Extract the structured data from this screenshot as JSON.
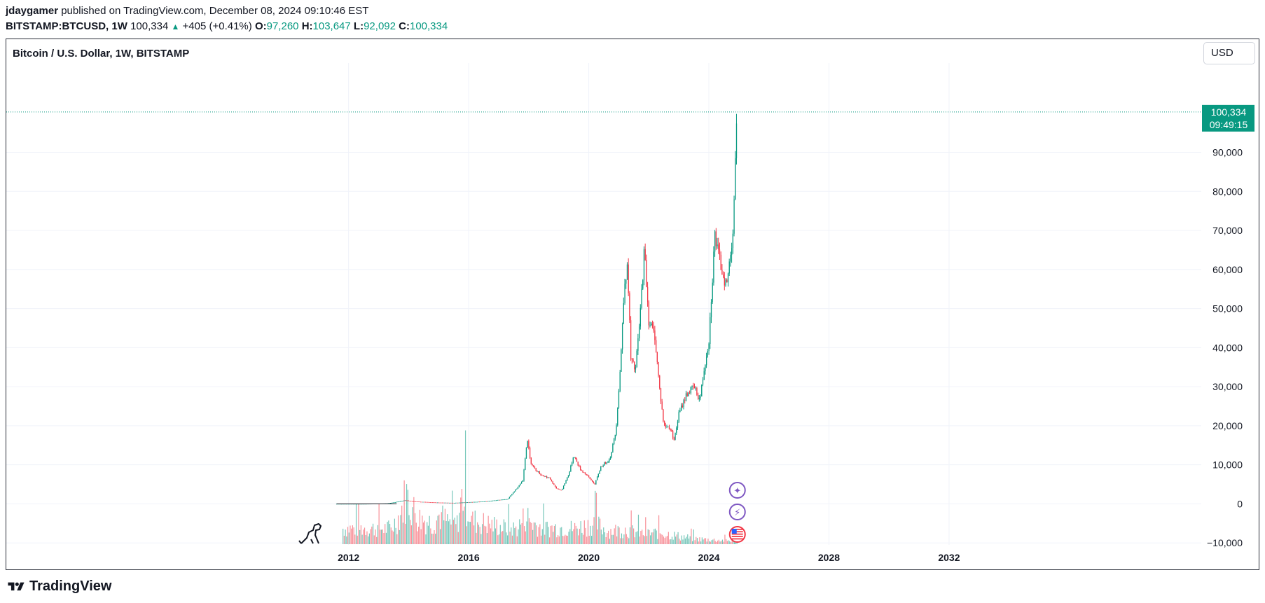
{
  "header": {
    "author": "jdaygamer",
    "published_text": "published on TradingView.com, December 08, 2024 09:10:46 EST"
  },
  "ohlc": {
    "symbol": "BITSTAMP:BTCUSD, 1W",
    "last": "100,334",
    "change": "+405 (+0.41%)",
    "o_label": "O:",
    "o": "97,260",
    "h_label": "H:",
    "h": "103,647",
    "l_label": "L:",
    "l": "92,092",
    "c_label": "C:",
    "c": "100,334"
  },
  "chart_title": "Bitcoin / U.S. Dollar, 1W, BITSTAMP",
  "currency_button": "USD",
  "price_tag": {
    "price": "100,334",
    "countdown": "09:49:15"
  },
  "footer": {
    "brand": "TradingView"
  },
  "colors": {
    "up": "#089981",
    "down": "#f23645",
    "grid": "#f0f3fa",
    "text": "#131722"
  },
  "chart_data": {
    "type": "candlestick",
    "title": "Bitcoin / U.S. Dollar, 1W, BITSTAMP",
    "x_ticks": [
      "2012",
      "2016",
      "2020",
      "2024",
      "2028",
      "2032"
    ],
    "x_tick_values": [
      2012,
      2016,
      2020,
      2024,
      2028,
      2032
    ],
    "y_ticks": [
      "90,000",
      "80,000",
      "70,000",
      "60,000",
      "50,000",
      "40,000",
      "30,000",
      "20,000",
      "10,000",
      "0",
      "−10,000"
    ],
    "y_tick_values": [
      90000,
      80000,
      70000,
      60000,
      50000,
      40000,
      30000,
      20000,
      10000,
      0,
      -10000
    ],
    "ylim": [
      -10500,
      112500
    ],
    "xlim": [
      2000.6,
      2040.4
    ],
    "last_price": 100334,
    "price_series": [
      [
        2011.6,
        0
      ],
      [
        2012.5,
        5
      ],
      [
        2013.3,
        100
      ],
      [
        2013.9,
        900
      ],
      [
        2014.2,
        600
      ],
      [
        2014.9,
        350
      ],
      [
        2015.5,
        250
      ],
      [
        2016.0,
        420
      ],
      [
        2016.6,
        650
      ],
      [
        2017.0,
        1000
      ],
      [
        2017.3,
        1200
      ],
      [
        2017.6,
        4000
      ],
      [
        2017.8,
        6000
      ],
      [
        2017.95,
        17000
      ],
      [
        2018.05,
        11000
      ],
      [
        2018.2,
        9000
      ],
      [
        2018.4,
        7500
      ],
      [
        2018.7,
        6500
      ],
      [
        2018.9,
        4000
      ],
      [
        2019.1,
        3500
      ],
      [
        2019.35,
        8000
      ],
      [
        2019.5,
        12500
      ],
      [
        2019.7,
        9000
      ],
      [
        2019.95,
        7200
      ],
      [
        2020.2,
        5000
      ],
      [
        2020.4,
        9500
      ],
      [
        2020.7,
        11500
      ],
      [
        2020.9,
        18500
      ],
      [
        2021.05,
        35000
      ],
      [
        2021.2,
        58000
      ],
      [
        2021.3,
        60000
      ],
      [
        2021.4,
        37000
      ],
      [
        2021.55,
        34000
      ],
      [
        2021.7,
        47000
      ],
      [
        2021.85,
        65000
      ],
      [
        2022.0,
        47000
      ],
      [
        2022.2,
        43000
      ],
      [
        2022.35,
        30000
      ],
      [
        2022.5,
        20000
      ],
      [
        2022.7,
        19500
      ],
      [
        2022.85,
        16500
      ],
      [
        2023.0,
        23000
      ],
      [
        2023.25,
        28000
      ],
      [
        2023.5,
        30000
      ],
      [
        2023.7,
        26500
      ],
      [
        2023.85,
        35000
      ],
      [
        2024.0,
        42000
      ],
      [
        2024.2,
        69000
      ],
      [
        2024.3,
        64000
      ],
      [
        2024.5,
        58000
      ],
      [
        2024.6,
        56000
      ],
      [
        2024.7,
        63000
      ],
      [
        2024.8,
        70000
      ],
      [
        2024.9,
        91000
      ],
      [
        2024.95,
        100334
      ]
    ],
    "volume_series": [
      [
        2013.4,
        0.3
      ],
      [
        2013.7,
        0.55
      ],
      [
        2013.9,
        0.95
      ],
      [
        2014.1,
        0.7
      ],
      [
        2014.3,
        0.5
      ],
      [
        2014.6,
        0.45
      ],
      [
        2014.8,
        0.4
      ],
      [
        2015.0,
        0.55
      ],
      [
        2015.3,
        0.42
      ],
      [
        2015.6,
        0.38
      ],
      [
        2015.8,
        1.0
      ],
      [
        2016.1,
        0.45
      ],
      [
        2016.5,
        0.4
      ],
      [
        2016.9,
        0.35
      ],
      [
        2017.3,
        0.3
      ],
      [
        2017.6,
        0.3
      ],
      [
        2017.9,
        0.55
      ],
      [
        2018.1,
        0.4
      ],
      [
        2018.5,
        0.3
      ],
      [
        2019.0,
        0.32
      ],
      [
        2019.5,
        0.3
      ],
      [
        2020.2,
        0.4
      ],
      [
        2020.6,
        0.25
      ],
      [
        2021.2,
        0.28
      ],
      [
        2021.8,
        0.2
      ],
      [
        2022.4,
        0.22
      ],
      [
        2023.0,
        0.15
      ],
      [
        2023.6,
        0.1
      ],
      [
        2024.2,
        0.08
      ],
      [
        2024.9,
        0.06
      ]
    ],
    "events": [
      "ideas",
      "flash",
      "us-flag"
    ]
  }
}
